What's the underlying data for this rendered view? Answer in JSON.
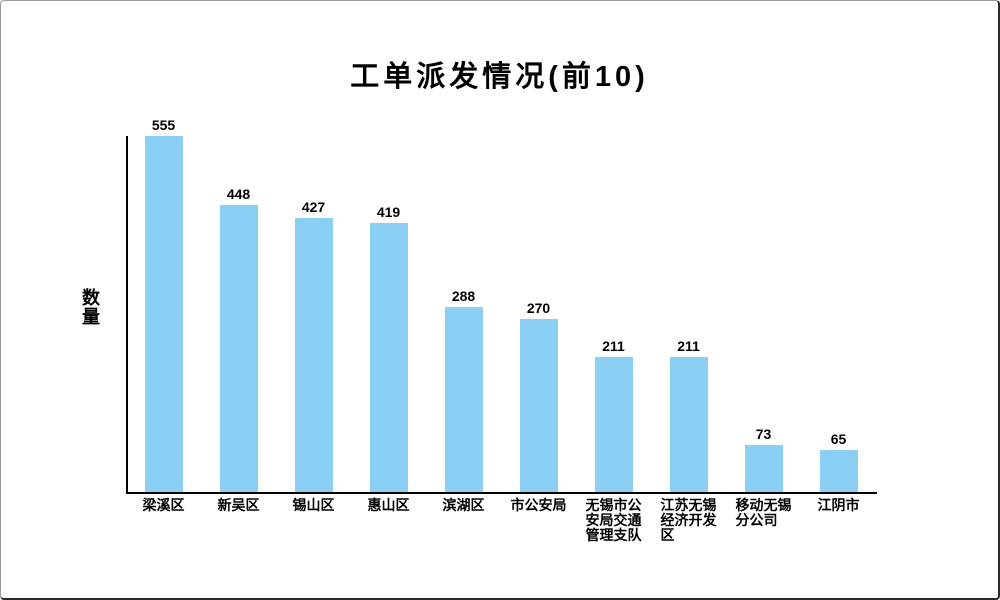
{
  "chart_data": {
    "type": "bar",
    "title": "工单派发情况(前10)",
    "xlabel": "",
    "ylabel": "数量",
    "categories": [
      "梁溪区",
      "新吴区",
      "锡山区",
      "惠山区",
      "滨湖区",
      "市公安局",
      "无锡市公安局交通管理支队",
      "江苏无锡经济开发区",
      "移动无锡分公司",
      "江阴市"
    ],
    "category_label_lines": [
      [
        "梁溪区"
      ],
      [
        "新吴区"
      ],
      [
        "锡山区"
      ],
      [
        "惠山区"
      ],
      [
        "滨湖区"
      ],
      [
        "市公安局"
      ],
      [
        "无锡市公",
        "安局交通",
        "管理支队"
      ],
      [
        "江苏无锡",
        "经济开发",
        "区"
      ],
      [
        "移动无锡",
        "分公司"
      ],
      [
        "江阴市"
      ]
    ],
    "values": [
      555,
      448,
      427,
      419,
      288,
      270,
      211,
      211,
      73,
      65
    ],
    "value_labels_shown": true,
    "ylim": [
      0,
      555
    ],
    "grid": false,
    "legend": null,
    "bar_color": "#8BD0F4"
  },
  "colors": {
    "axis": "#000000",
    "text": "#000000",
    "background": "#ffffff"
  }
}
